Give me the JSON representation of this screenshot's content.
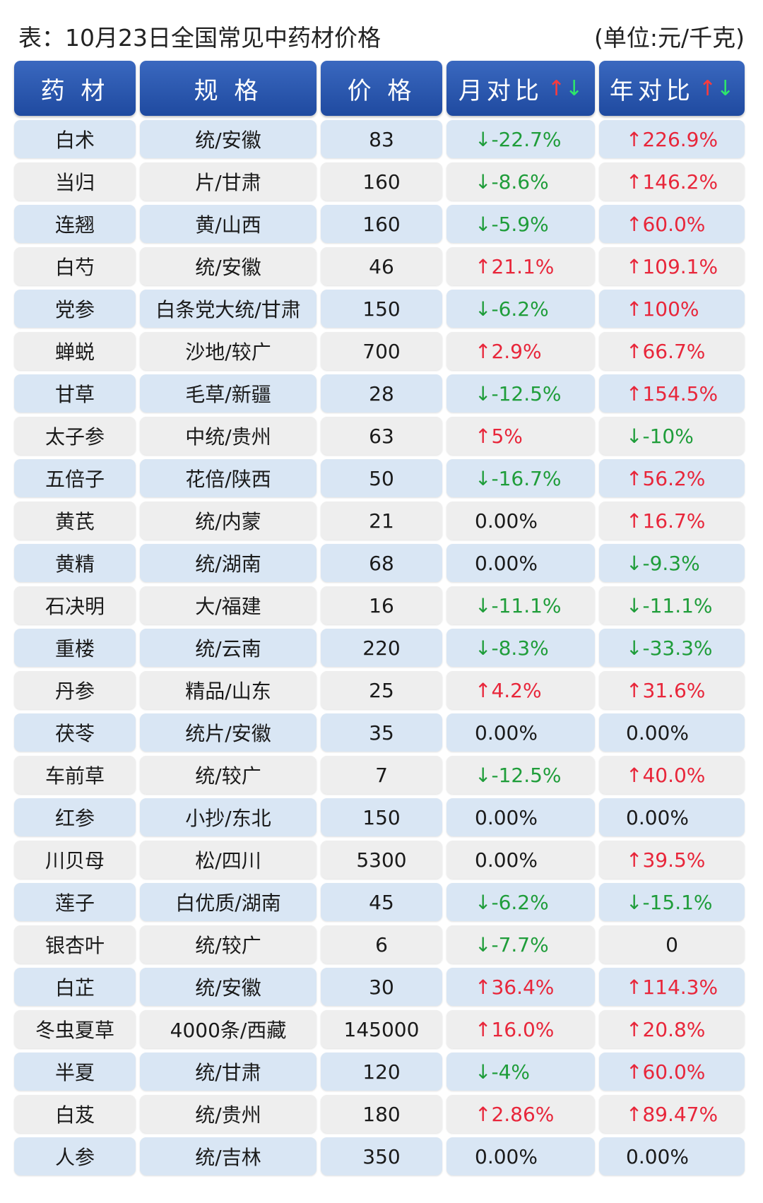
{
  "title": "表：10月23日全国常见中药材价格",
  "unit": "(单位:元/千克)",
  "headers": {
    "herb": "药 材",
    "spec": "规 格",
    "price": "价 格",
    "month": "月对比",
    "year": "年对比",
    "arrow_up": "↑",
    "arrow_down": "↓"
  },
  "colors": {
    "header": "#2a56ad",
    "up": "#e8263a",
    "down": "#1f9d3a",
    "row_odd": "#d9e6f4",
    "row_even": "#eeeeee"
  },
  "rows": [
    {
      "herb": "白术",
      "spec": "统/安徽",
      "price": "83",
      "month": "↓-22.7%",
      "year": "↑226.9%"
    },
    {
      "herb": "当归",
      "spec": "片/甘肃",
      "price": "160",
      "month": "↓-8.6%",
      "year": "↑146.2%"
    },
    {
      "herb": "连翘",
      "spec": "黄/山西",
      "price": "160",
      "month": "↓-5.9%",
      "year": "↑60.0%"
    },
    {
      "herb": "白芍",
      "spec": "统/安徽",
      "price": "46",
      "month": "↑21.1%",
      "year": "↑109.1%"
    },
    {
      "herb": "党参",
      "spec": "白条党大统/甘肃",
      "price": "150",
      "month": "↓-6.2%",
      "year": "↑100%"
    },
    {
      "herb": "蝉蜕",
      "spec": "沙地/较广",
      "price": "700",
      "month": "↑2.9%",
      "year": "↑66.7%"
    },
    {
      "herb": "甘草",
      "spec": "毛草/新疆",
      "price": "28",
      "month": "↓-12.5%",
      "year": "↑154.5%"
    },
    {
      "herb": "太子参",
      "spec": "中统/贵州",
      "price": "63",
      "month": "↑5%",
      "year": "↓-10%"
    },
    {
      "herb": "五倍子",
      "spec": "花倍/陕西",
      "price": "50",
      "month": "↓-16.7%",
      "year": "↑56.2%"
    },
    {
      "herb": "黄芪",
      "spec": "统/内蒙",
      "price": "21",
      "month": "0.00%",
      "year": "↑16.7%"
    },
    {
      "herb": "黄精",
      "spec": "统/湖南",
      "price": "68",
      "month": "0.00%",
      "year": "↓-9.3%"
    },
    {
      "herb": "石决明",
      "spec": "大/福建",
      "price": "16",
      "month": "↓-11.1%",
      "year": "↓-11.1%"
    },
    {
      "herb": "重楼",
      "spec": "统/云南",
      "price": "220",
      "month": "↓-8.3%",
      "year": "↓-33.3%"
    },
    {
      "herb": "丹参",
      "spec": "精品/山东",
      "price": "25",
      "month": "↑4.2%",
      "year": "↑31.6%"
    },
    {
      "herb": "茯苓",
      "spec": "统片/安徽",
      "price": "35",
      "month": "0.00%",
      "year": "0.00%"
    },
    {
      "herb": "车前草",
      "spec": "统/较广",
      "price": "7",
      "month": "↓-12.5%",
      "year": "↑40.0%"
    },
    {
      "herb": "红参",
      "spec": "小抄/东北",
      "price": "150",
      "month": "0.00%",
      "year": "0.00%"
    },
    {
      "herb": "川贝母",
      "spec": "松/四川",
      "price": "5300",
      "month": "0.00%",
      "year": "↑39.5%"
    },
    {
      "herb": "莲子",
      "spec": "白优质/湖南",
      "price": "45",
      "month": "↓-6.2%",
      "year": "↓-15.1%"
    },
    {
      "herb": "银杏叶",
      "spec": "统/较广",
      "price": "6",
      "month": "↓-7.7%",
      "year": "0"
    },
    {
      "herb": "白芷",
      "spec": "统/安徽",
      "price": "30",
      "month": "↑36.4%",
      "year": "↑114.3%"
    },
    {
      "herb": "冬虫夏草",
      "spec": "4000条/西藏",
      "price": "145000",
      "month": "↑16.0%",
      "year": "↑20.8%"
    },
    {
      "herb": "半夏",
      "spec": "统/甘肃",
      "price": "120",
      "month": "↓-4%",
      "year": "↑60.0%"
    },
    {
      "herb": "白芨",
      "spec": "统/贵州",
      "price": "180",
      "month": "↑2.86%",
      "year": "↑89.47%"
    },
    {
      "herb": "人参",
      "spec": "统/吉林",
      "price": "350",
      "month": "0.00%",
      "year": "0.00%"
    }
  ]
}
